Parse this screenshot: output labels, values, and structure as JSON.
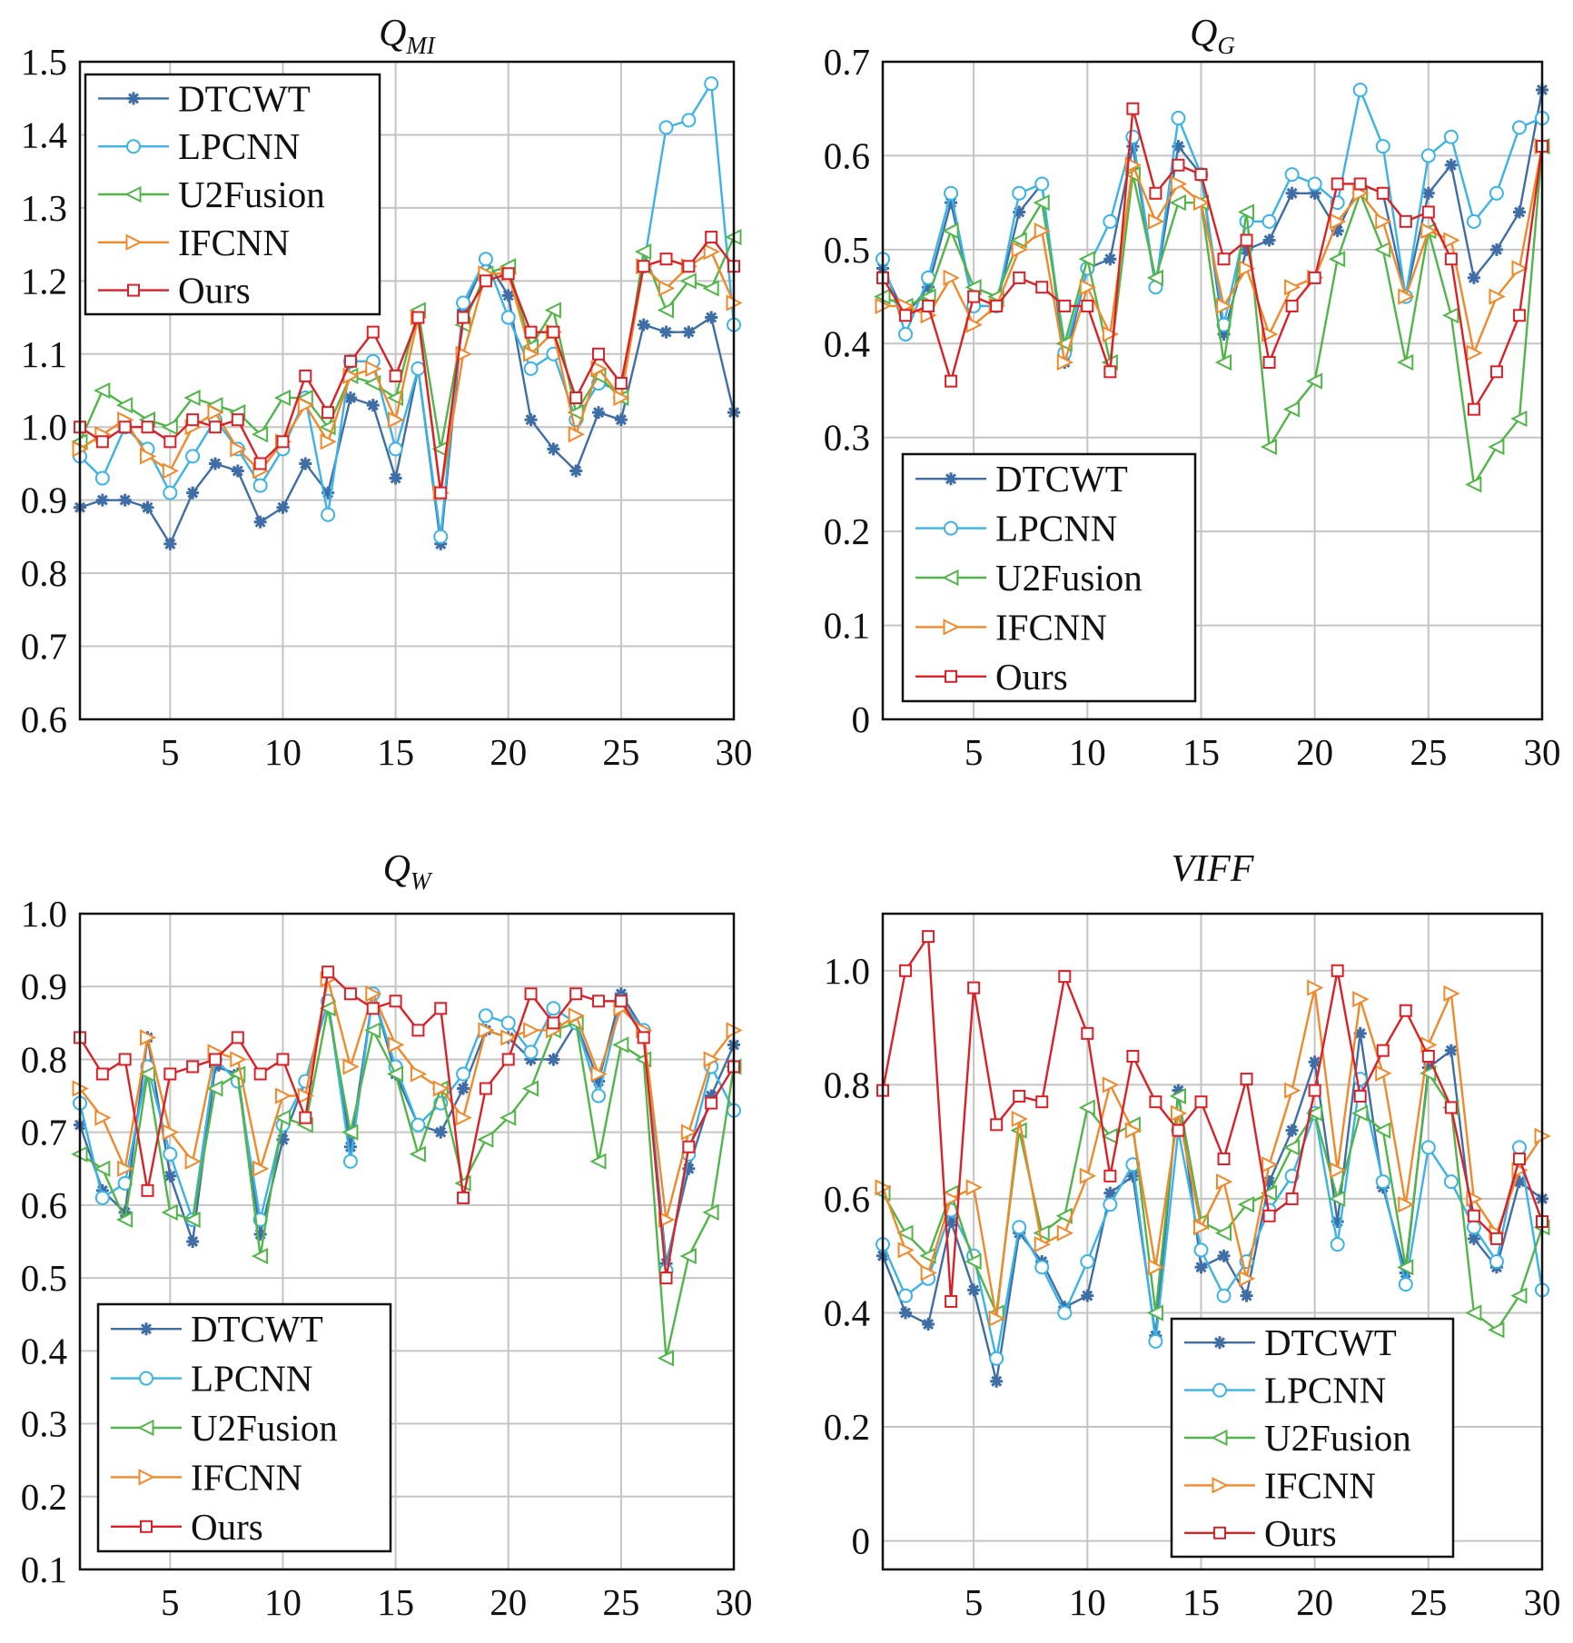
{
  "chart_data": [
    {
      "type": "line",
      "title": "Q",
      "title_subscript": "MI",
      "xlim": [
        1,
        30
      ],
      "ylim": [
        0.6,
        1.5
      ],
      "xticks": [
        5,
        10,
        15,
        20,
        25,
        30
      ],
      "yticks": [
        0.6,
        0.7,
        0.8,
        0.9,
        1.0,
        1.1,
        1.2,
        1.3,
        1.4,
        1.5
      ],
      "ytick_labels": [
        "0.6",
        "0.7",
        "0.8",
        "0.9",
        "1.0",
        "1.1",
        "1.2",
        "1.3",
        "1.4",
        "1.5"
      ],
      "grid": true,
      "legend_position": "top-left",
      "x": [
        1,
        2,
        3,
        4,
        5,
        6,
        7,
        8,
        9,
        10,
        11,
        12,
        13,
        14,
        15,
        16,
        17,
        18,
        19,
        20,
        21,
        22,
        23,
        24,
        25,
        26,
        27,
        28,
        29,
        30
      ],
      "series": [
        {
          "name": "DTCWT",
          "color": "#3f6ea6",
          "marker": "star",
          "values": [
            0.89,
            0.9,
            0.9,
            0.89,
            0.84,
            0.91,
            0.95,
            0.94,
            0.87,
            0.89,
            0.95,
            0.91,
            1.04,
            1.03,
            0.93,
            1.08,
            0.84,
            1.16,
            1.23,
            1.18,
            1.01,
            0.97,
            0.94,
            1.02,
            1.01,
            1.14,
            1.13,
            1.13,
            1.15,
            1.02
          ]
        },
        {
          "name": "LPCNN",
          "color": "#3ab3e6",
          "marker": "circle",
          "values": [
            0.96,
            0.93,
            1.0,
            0.97,
            0.91,
            0.96,
            1.01,
            0.97,
            0.92,
            0.97,
            1.04,
            0.88,
            1.09,
            1.09,
            0.97,
            1.08,
            0.85,
            1.17,
            1.23,
            1.15,
            1.08,
            1.1,
            1.01,
            1.06,
            1.05,
            1.22,
            1.41,
            1.42,
            1.47,
            1.14
          ]
        },
        {
          "name": "U2Fusion",
          "color": "#52b549",
          "marker": "triangle-left",
          "values": [
            0.98,
            1.05,
            1.03,
            1.01,
            1.0,
            1.04,
            1.03,
            1.02,
            0.99,
            1.04,
            1.04,
            1.0,
            1.07,
            1.06,
            1.04,
            1.16,
            0.97,
            1.14,
            1.21,
            1.22,
            1.11,
            1.16,
            1.02,
            1.07,
            1.04,
            1.24,
            1.16,
            1.2,
            1.19,
            1.26
          ]
        },
        {
          "name": "IFCNN",
          "color": "#f0892a",
          "marker": "triangle-right",
          "values": [
            0.97,
            0.99,
            1.01,
            0.96,
            0.94,
            1.0,
            1.02,
            0.97,
            0.94,
            0.98,
            1.03,
            0.98,
            1.07,
            1.08,
            1.01,
            1.15,
            0.91,
            1.1,
            1.21,
            1.21,
            1.1,
            1.13,
            0.99,
            1.08,
            1.04,
            1.22,
            1.19,
            1.22,
            1.24,
            1.17
          ]
        },
        {
          "name": "Ours",
          "color": "#d92128",
          "marker": "square",
          "values": [
            1.0,
            0.98,
            1.0,
            1.0,
            0.98,
            1.01,
            1.0,
            1.01,
            0.95,
            0.98,
            1.07,
            1.02,
            1.09,
            1.13,
            1.07,
            1.15,
            0.91,
            1.15,
            1.2,
            1.21,
            1.13,
            1.13,
            1.04,
            1.1,
            1.06,
            1.22,
            1.23,
            1.22,
            1.26,
            1.22
          ]
        }
      ]
    },
    {
      "type": "line",
      "title": "Q",
      "title_subscript": "G",
      "xlim": [
        1,
        30
      ],
      "ylim": [
        0,
        0.7
      ],
      "xticks": [
        5,
        10,
        15,
        20,
        25,
        30
      ],
      "yticks": [
        0,
        0.1,
        0.2,
        0.3,
        0.4,
        0.5,
        0.6,
        0.7
      ],
      "ytick_labels": [
        "0",
        "0.1",
        "0.2",
        "0.3",
        "0.4",
        "0.5",
        "0.6",
        "0.7"
      ],
      "grid": true,
      "legend_position": "bottom-left",
      "x": [
        1,
        2,
        3,
        4,
        5,
        6,
        7,
        8,
        9,
        10,
        11,
        12,
        13,
        14,
        15,
        16,
        17,
        18,
        19,
        20,
        21,
        22,
        23,
        24,
        25,
        26,
        27,
        28,
        29,
        30
      ],
      "series": [
        {
          "name": "DTCWT",
          "color": "#3f6ea6",
          "marker": "star",
          "values": [
            0.48,
            0.43,
            0.46,
            0.55,
            0.44,
            0.44,
            0.54,
            0.57,
            0.38,
            0.48,
            0.49,
            0.61,
            0.46,
            0.61,
            0.58,
            0.41,
            0.5,
            0.51,
            0.56,
            0.56,
            0.52,
            0.57,
            0.56,
            0.45,
            0.56,
            0.59,
            0.47,
            0.5,
            0.54,
            0.67
          ]
        },
        {
          "name": "LPCNN",
          "color": "#3ab3e6",
          "marker": "circle",
          "values": [
            0.49,
            0.41,
            0.47,
            0.56,
            0.44,
            0.44,
            0.56,
            0.57,
            0.39,
            0.48,
            0.53,
            0.62,
            0.46,
            0.64,
            0.58,
            0.42,
            0.53,
            0.53,
            0.58,
            0.57,
            0.55,
            0.67,
            0.61,
            0.45,
            0.6,
            0.62,
            0.53,
            0.56,
            0.63,
            0.64
          ]
        },
        {
          "name": "U2Fusion",
          "color": "#52b549",
          "marker": "triangle-left",
          "values": [
            0.45,
            0.44,
            0.45,
            0.52,
            0.46,
            0.45,
            0.51,
            0.55,
            0.4,
            0.49,
            0.38,
            0.58,
            0.47,
            0.55,
            0.55,
            0.38,
            0.54,
            0.29,
            0.33,
            0.36,
            0.49,
            0.56,
            0.5,
            0.38,
            0.52,
            0.43,
            0.25,
            0.29,
            0.32,
            0.61
          ]
        },
        {
          "name": "IFCNN",
          "color": "#f0892a",
          "marker": "triangle-right",
          "values": [
            0.44,
            0.44,
            0.43,
            0.47,
            0.42,
            0.44,
            0.5,
            0.52,
            0.38,
            0.46,
            0.41,
            0.59,
            0.53,
            0.57,
            0.55,
            0.44,
            0.48,
            0.41,
            0.46,
            0.47,
            0.53,
            0.56,
            0.53,
            0.45,
            0.52,
            0.51,
            0.39,
            0.45,
            0.48,
            0.61
          ]
        },
        {
          "name": "Ours",
          "color": "#d92128",
          "marker": "square",
          "values": [
            0.47,
            0.43,
            0.44,
            0.36,
            0.45,
            0.44,
            0.47,
            0.46,
            0.44,
            0.44,
            0.37,
            0.65,
            0.56,
            0.59,
            0.58,
            0.49,
            0.51,
            0.38,
            0.44,
            0.47,
            0.57,
            0.57,
            0.56,
            0.53,
            0.54,
            0.49,
            0.33,
            0.37,
            0.43,
            0.61
          ]
        }
      ]
    },
    {
      "type": "line",
      "title": "Q",
      "title_subscript": "W",
      "xlim": [
        1,
        30
      ],
      "ylim": [
        0.1,
        1.0
      ],
      "xticks": [
        5,
        10,
        15,
        20,
        25,
        30
      ],
      "yticks": [
        0.1,
        0.2,
        0.3,
        0.4,
        0.5,
        0.6,
        0.7,
        0.8,
        0.9,
        1.0
      ],
      "ytick_labels": [
        "0.1",
        "0.2",
        "0.3",
        "0.4",
        "0.5",
        "0.6",
        "0.7",
        "0.8",
        "0.9",
        "1.0"
      ],
      "grid": true,
      "legend_position": "bottom-left",
      "x": [
        1,
        2,
        3,
        4,
        5,
        6,
        7,
        8,
        9,
        10,
        11,
        12,
        13,
        14,
        15,
        16,
        17,
        18,
        19,
        20,
        21,
        22,
        23,
        24,
        25,
        26,
        27,
        28,
        29,
        30
      ],
      "series": [
        {
          "name": "DTCWT",
          "color": "#3f6ea6",
          "marker": "star",
          "values": [
            0.71,
            0.62,
            0.59,
            0.83,
            0.64,
            0.55,
            0.79,
            0.78,
            0.56,
            0.69,
            0.77,
            0.88,
            0.68,
            0.89,
            0.78,
            0.71,
            0.7,
            0.76,
            0.84,
            0.83,
            0.8,
            0.8,
            0.85,
            0.77,
            0.89,
            0.84,
            0.52,
            0.65,
            0.75,
            0.82
          ]
        },
        {
          "name": "LPCNN",
          "color": "#3ab3e6",
          "marker": "circle",
          "values": [
            0.74,
            0.61,
            0.63,
            0.79,
            0.67,
            0.58,
            0.8,
            0.77,
            0.58,
            0.71,
            0.77,
            0.88,
            0.66,
            0.89,
            0.79,
            0.71,
            0.74,
            0.78,
            0.86,
            0.85,
            0.81,
            0.87,
            0.85,
            0.75,
            0.88,
            0.84,
            0.51,
            0.67,
            0.79,
            0.73
          ]
        },
        {
          "name": "U2Fusion",
          "color": "#52b549",
          "marker": "triangle-left",
          "values": [
            0.67,
            0.65,
            0.58,
            0.78,
            0.59,
            0.58,
            0.76,
            0.78,
            0.53,
            0.72,
            0.71,
            0.87,
            0.7,
            0.84,
            0.78,
            0.67,
            0.76,
            0.63,
            0.69,
            0.72,
            0.76,
            0.84,
            0.85,
            0.66,
            0.82,
            0.8,
            0.39,
            0.53,
            0.59,
            0.79
          ]
        },
        {
          "name": "IFCNN",
          "color": "#f0892a",
          "marker": "triangle-right",
          "values": [
            0.76,
            0.72,
            0.65,
            0.83,
            0.7,
            0.66,
            0.81,
            0.8,
            0.65,
            0.75,
            0.75,
            0.91,
            0.79,
            0.89,
            0.82,
            0.78,
            0.76,
            0.72,
            0.84,
            0.83,
            0.84,
            0.84,
            0.86,
            0.78,
            0.87,
            0.84,
            0.58,
            0.7,
            0.8,
            0.84
          ]
        },
        {
          "name": "Ours",
          "color": "#d92128",
          "marker": "square",
          "values": [
            0.83,
            0.78,
            0.8,
            0.62,
            0.78,
            0.79,
            0.8,
            0.83,
            0.78,
            0.8,
            0.72,
            0.92,
            0.89,
            0.87,
            0.88,
            0.84,
            0.87,
            0.61,
            0.76,
            0.8,
            0.89,
            0.85,
            0.89,
            0.88,
            0.88,
            0.83,
            0.5,
            0.68,
            0.74,
            0.79
          ]
        }
      ]
    },
    {
      "type": "line",
      "title": "VIFF",
      "title_subscript": "",
      "xlim": [
        1,
        30
      ],
      "ylim": [
        -0.05,
        1.1
      ],
      "xticks": [
        5,
        10,
        15,
        20,
        25,
        30
      ],
      "yticks": [
        0,
        0.2,
        0.4,
        0.6,
        0.8,
        1.0
      ],
      "ytick_labels": [
        "0",
        "0.2",
        "0.4",
        "0.6",
        "0.8",
        "1.0"
      ],
      "grid": true,
      "legend_position": "bottom-right",
      "x": [
        1,
        2,
        3,
        4,
        5,
        6,
        7,
        8,
        9,
        10,
        11,
        12,
        13,
        14,
        15,
        16,
        17,
        18,
        19,
        20,
        21,
        22,
        23,
        24,
        25,
        26,
        27,
        28,
        29,
        30
      ],
      "series": [
        {
          "name": "DTCWT",
          "color": "#3f6ea6",
          "marker": "star",
          "values": [
            0.5,
            0.4,
            0.38,
            0.56,
            0.44,
            0.28,
            0.54,
            0.49,
            0.41,
            0.43,
            0.61,
            0.64,
            0.36,
            0.79,
            0.48,
            0.5,
            0.43,
            0.63,
            0.72,
            0.84,
            0.56,
            0.89,
            0.62,
            0.47,
            0.83,
            0.86,
            0.53,
            0.48,
            0.63,
            0.6
          ]
        },
        {
          "name": "LPCNN",
          "color": "#3ab3e6",
          "marker": "circle",
          "values": [
            0.52,
            0.43,
            0.46,
            0.58,
            0.5,
            0.32,
            0.55,
            0.48,
            0.4,
            0.49,
            0.59,
            0.66,
            0.35,
            0.72,
            0.51,
            0.43,
            0.49,
            0.58,
            0.64,
            0.75,
            0.52,
            0.81,
            0.63,
            0.45,
            0.69,
            0.63,
            0.55,
            0.49,
            0.69,
            0.44
          ]
        },
        {
          "name": "U2Fusion",
          "color": "#52b549",
          "marker": "triangle-left",
          "values": [
            0.61,
            0.54,
            0.5,
            0.61,
            0.49,
            0.4,
            0.72,
            0.54,
            0.57,
            0.76,
            0.71,
            0.73,
            0.4,
            0.78,
            0.56,
            0.54,
            0.59,
            0.61,
            0.69,
            0.75,
            0.6,
            0.75,
            0.72,
            0.48,
            0.82,
            0.76,
            0.4,
            0.37,
            0.43,
            0.55
          ]
        },
        {
          "name": "IFCNN",
          "color": "#f0892a",
          "marker": "triangle-right",
          "values": [
            0.62,
            0.51,
            0.47,
            0.6,
            0.62,
            0.39,
            0.74,
            0.52,
            0.54,
            0.64,
            0.8,
            0.72,
            0.48,
            0.75,
            0.55,
            0.63,
            0.46,
            0.66,
            0.79,
            0.97,
            0.65,
            0.95,
            0.82,
            0.59,
            0.87,
            0.96,
            0.6,
            0.54,
            0.65,
            0.71
          ]
        },
        {
          "name": "Ours",
          "color": "#d92128",
          "marker": "square",
          "values": [
            0.79,
            1.0,
            1.06,
            0.42,
            0.97,
            0.73,
            0.78,
            0.77,
            0.99,
            0.89,
            0.64,
            0.85,
            0.77,
            0.72,
            0.77,
            0.67,
            0.81,
            0.57,
            0.6,
            0.79,
            1.0,
            0.78,
            0.86,
            0.93,
            0.85,
            0.76,
            0.57,
            0.53,
            0.67,
            0.56
          ]
        }
      ]
    }
  ]
}
